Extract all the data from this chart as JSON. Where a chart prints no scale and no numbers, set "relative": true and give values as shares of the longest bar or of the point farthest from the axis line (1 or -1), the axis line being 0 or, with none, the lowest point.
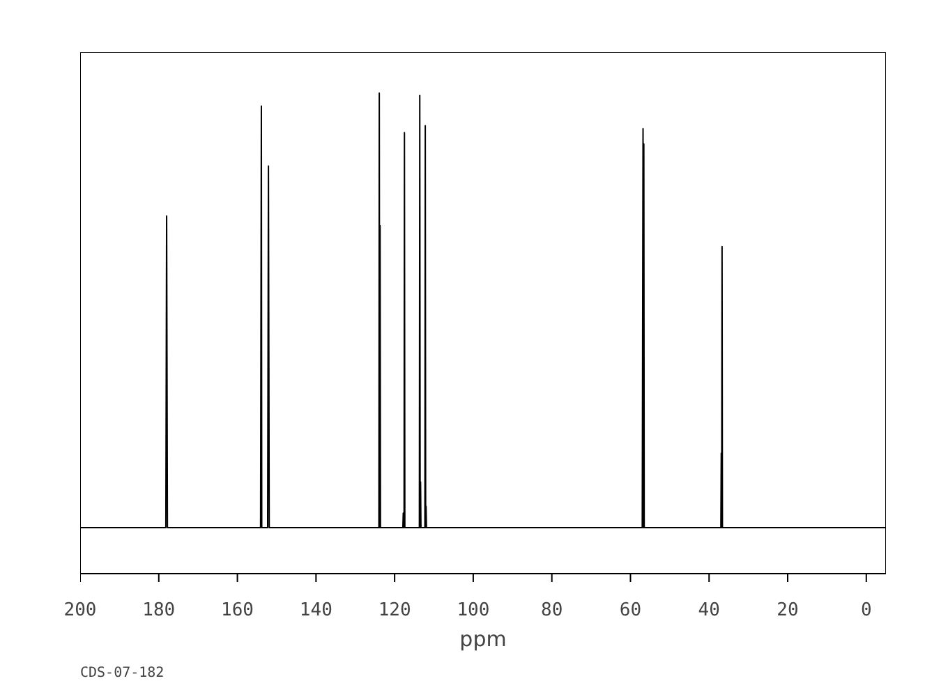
{
  "chart_data": {
    "type": "line",
    "relative": true,
    "xlabel": "ppm",
    "annotations": [
      "CDS-07-182"
    ],
    "xlim": [
      200,
      -5
    ],
    "xticks": [
      200,
      180,
      160,
      140,
      120,
      100,
      80,
      60,
      40,
      20,
      0
    ],
    "series": [
      {
        "color": "#000000",
        "x": [
          200,
          178.2,
          178.0,
          177.8,
          154.1,
          153.9,
          153.8,
          152.3,
          152.1,
          151.9,
          124.0,
          123.9,
          123.8,
          123.7,
          123.6,
          117.9,
          117.8,
          117.7,
          117.6,
          117.5,
          117.4,
          113.7,
          113.6,
          113.5,
          113.4,
          113.3,
          112.3,
          112.2,
          112.1,
          112.0,
          111.9,
          57.0,
          56.8,
          56.7,
          56.6,
          56.5,
          37.0,
          36.9,
          36.8,
          36.7,
          36.6,
          -5
        ],
        "values": [
          0,
          0,
          0.717,
          0,
          0,
          0.97,
          0,
          0,
          0.832,
          0,
          0,
          1.0,
          0,
          0.695,
          0,
          0,
          0.033,
          0,
          0,
          0.909,
          0,
          0,
          0.995,
          0,
          0.105,
          0,
          0,
          0.925,
          0,
          0.049,
          0,
          0,
          0.918,
          0,
          0.883,
          0,
          0,
          0.171,
          0,
          0.647,
          0,
          0
        ]
      }
    ]
  }
}
